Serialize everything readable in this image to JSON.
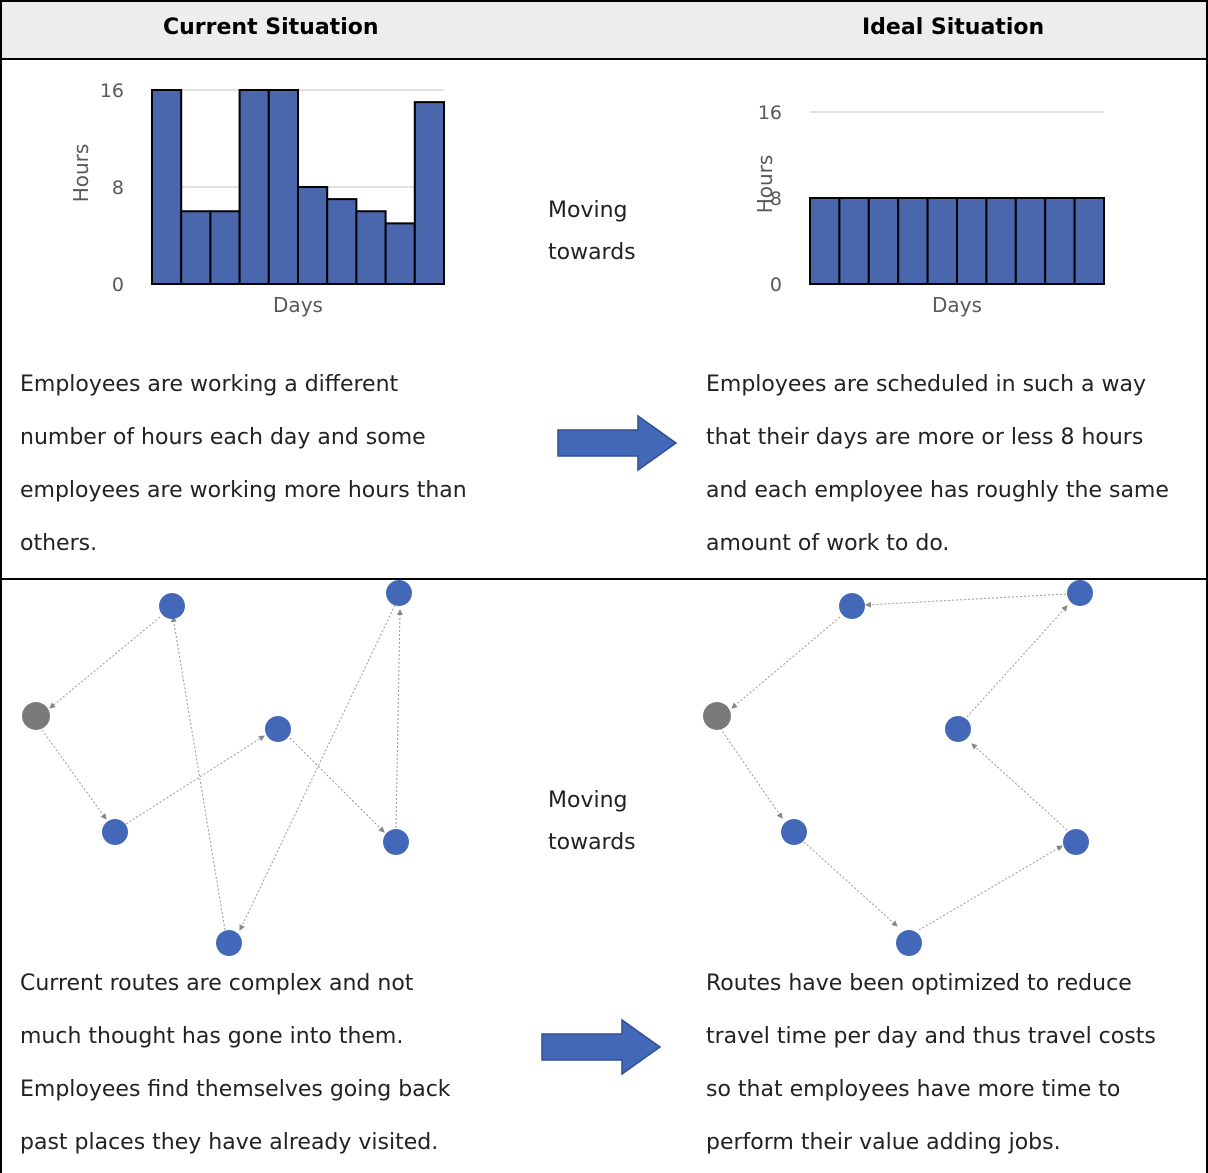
{
  "headers": {
    "current": "Current Situation",
    "ideal": "Ideal Situation"
  },
  "moving_label_1": "Moving\ntowards",
  "moving_label_2": "Moving\ntowards",
  "row1": {
    "current_text": "Employees are working a different\nnumber of hours each day and some\nemployees are working more hours than\nothers.",
    "ideal_text": "Employees are scheduled in such a way\nthat their days are more or less 8 hours\nand each employee has roughly the same\namount of work to do."
  },
  "row2": {
    "current_text": "Current routes are complex and not\nmuch thought has gone into them.\nEmployees find themselves going back\npast places they have already visited.",
    "ideal_text": "Routes have been optimized to reduce\ntravel time per day and thus travel costs\nso that employees have more time to\nperform their value adding jobs."
  },
  "colors": {
    "bar": "#4a66ad",
    "node": "#4468b8",
    "depot": "#7a7a7a",
    "arrow": "#4468b8"
  },
  "chart_data": [
    {
      "type": "bar",
      "xlabel": "Days",
      "ylabel": "Hours",
      "ylim": [
        0,
        16
      ],
      "yticks": [
        0,
        8,
        16
      ],
      "grid": true,
      "values": [
        16,
        6,
        6,
        16,
        16,
        8,
        7,
        6,
        5,
        15
      ]
    },
    {
      "type": "bar",
      "xlabel": "Days",
      "ylabel": "Hours",
      "ylim": [
        0,
        16
      ],
      "yticks": [
        0,
        8,
        16
      ],
      "grid": true,
      "values": [
        8,
        8,
        8,
        8,
        8,
        8,
        8,
        8,
        8,
        8
      ]
    }
  ]
}
